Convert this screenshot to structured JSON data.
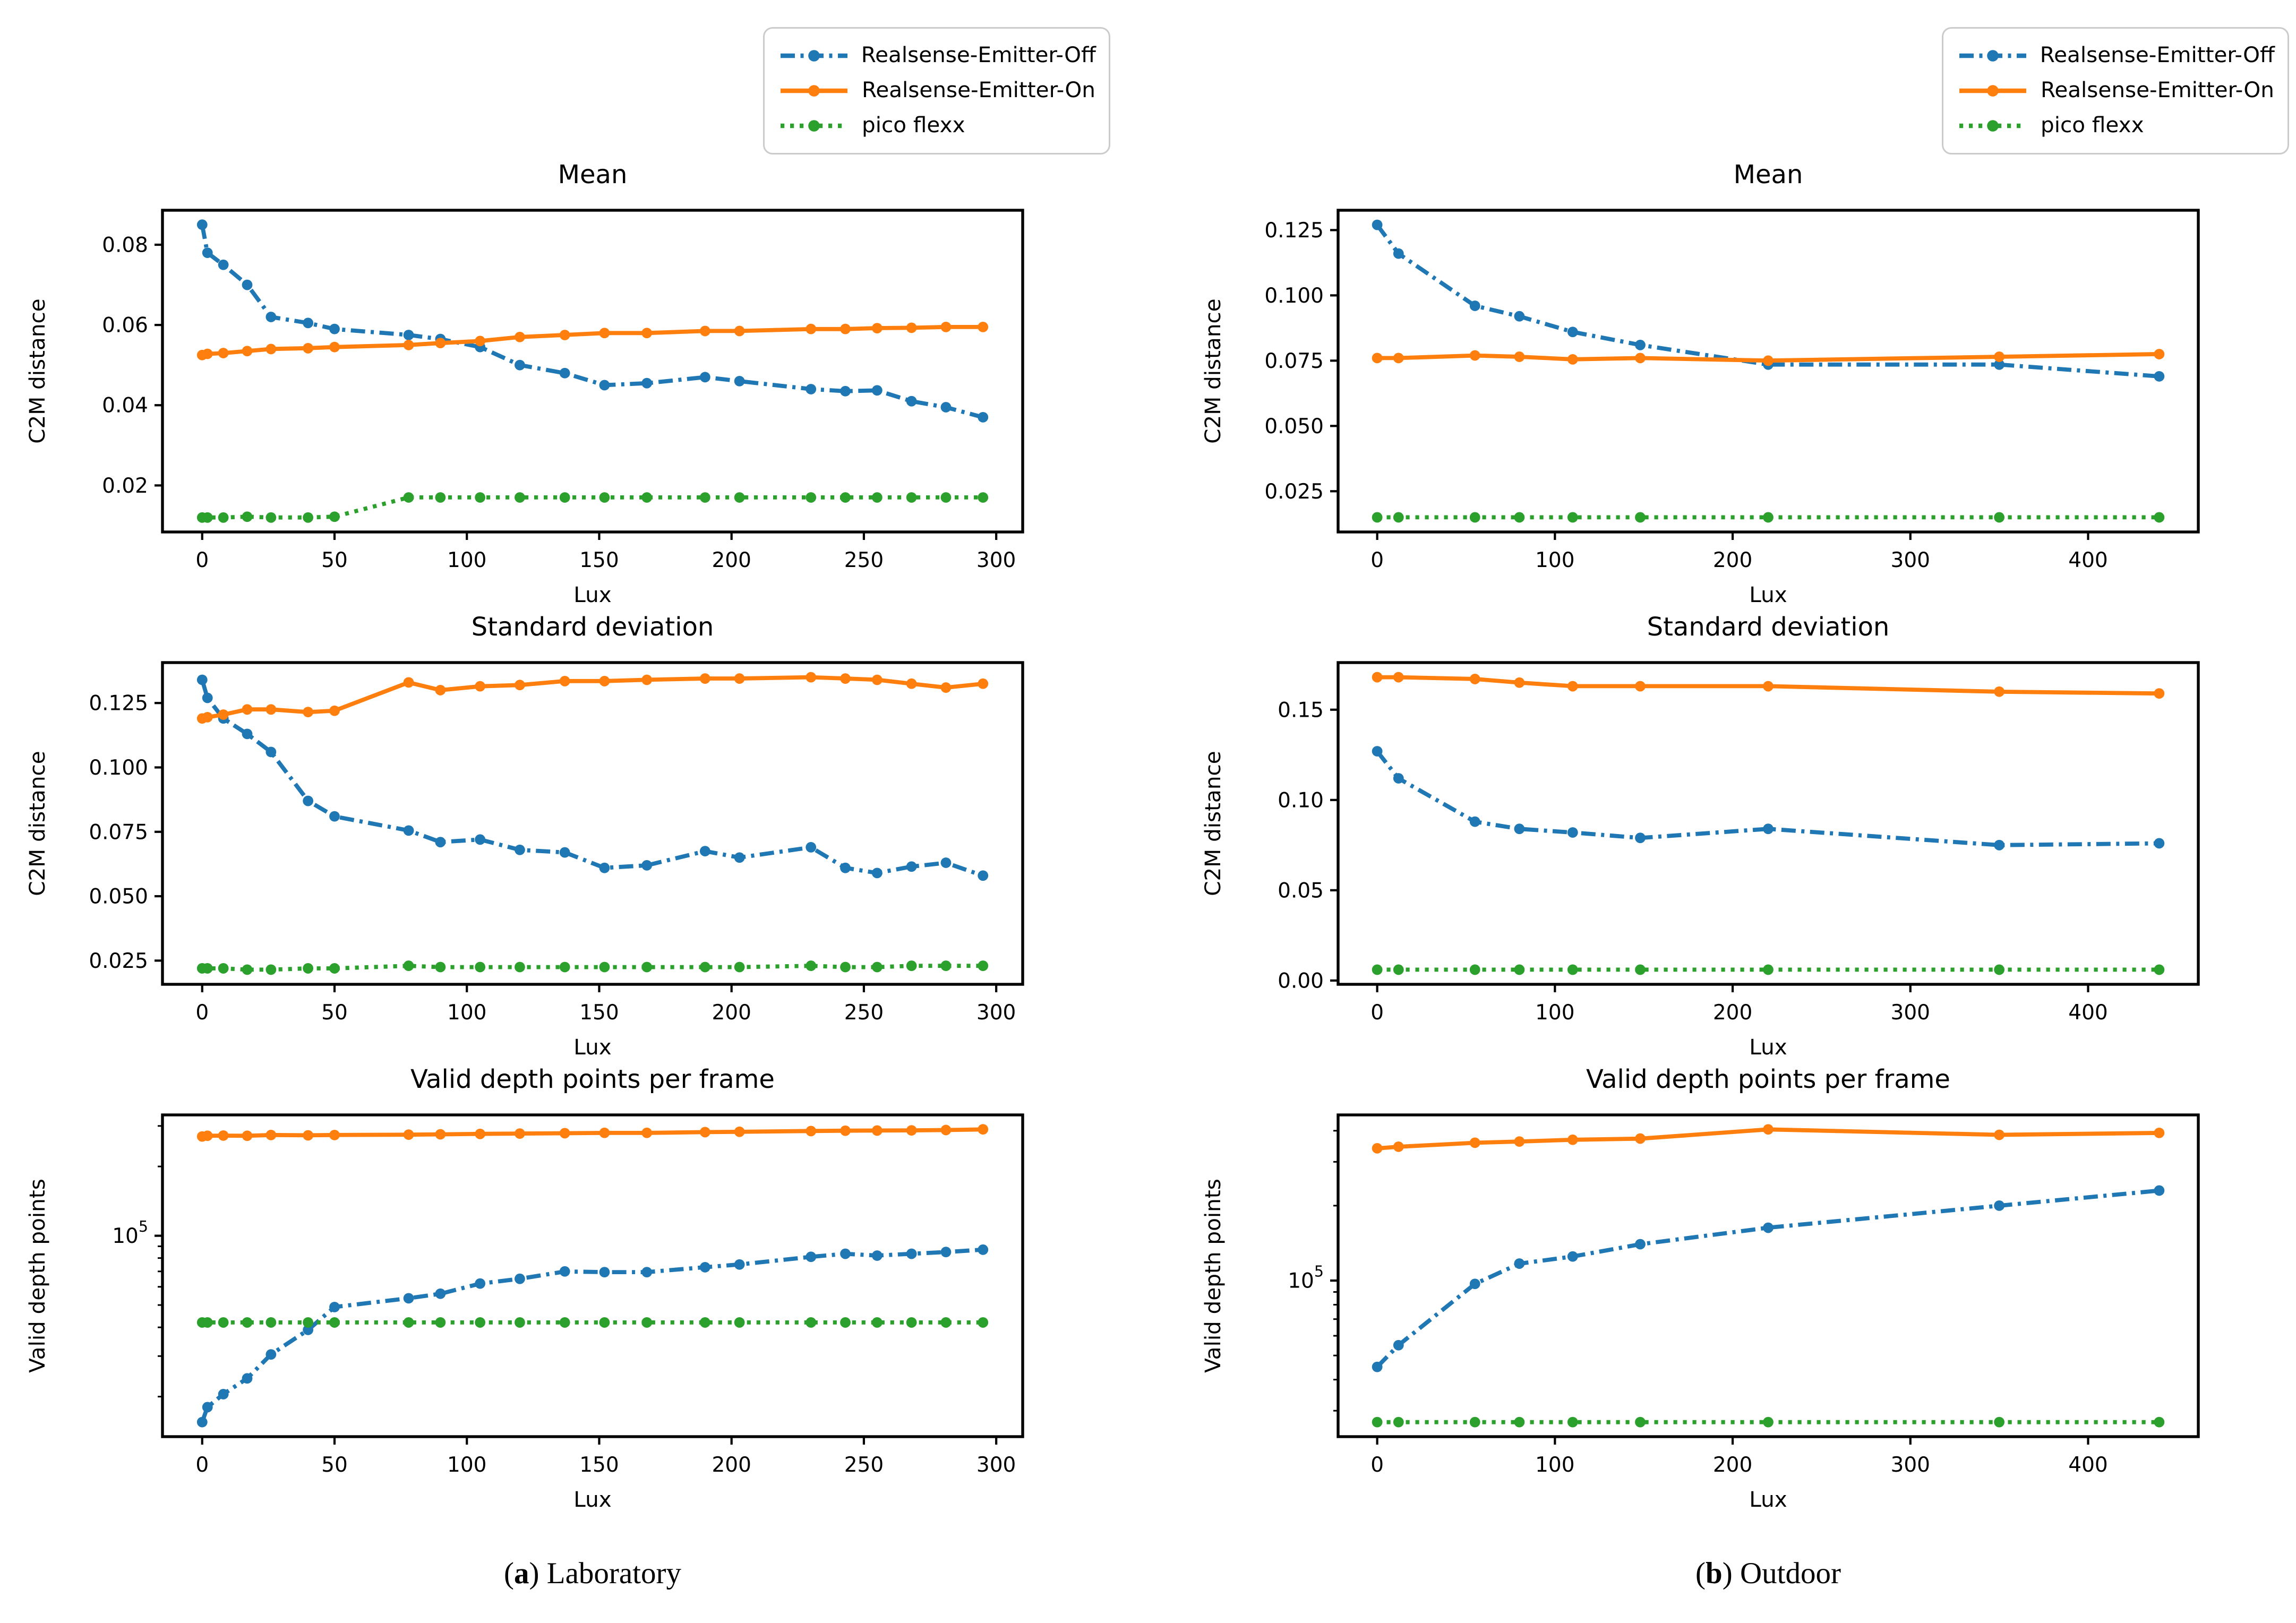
{
  "page": {
    "background": "#ffffff"
  },
  "colors": {
    "emitter_off": "#1f77b4",
    "emitter_on": "#ff7f0e",
    "pico_flexx": "#2ca02c",
    "axis": "#000000",
    "legend_border": "#cbcbcb"
  },
  "legend": {
    "position": "top-right-of-each-column",
    "items": [
      {
        "label": "Realsense-Emitter-Off",
        "series_key": "emitter_off",
        "style": "dashdot",
        "marker": "circle"
      },
      {
        "label": "Realsense-Emitter-On",
        "series_key": "emitter_on",
        "style": "solid",
        "marker": "circle"
      },
      {
        "label": "pico flexx",
        "series_key": "pico_flexx",
        "style": "dotted",
        "marker": "circle"
      }
    ]
  },
  "captions": {
    "a": {
      "open": "(",
      "label": "a",
      "close": ")",
      "text": " Laboratory"
    },
    "b": {
      "open": "(",
      "label": "b",
      "close": ")",
      "text": " Outdoor"
    }
  },
  "chart_data": [
    {
      "id": "laboratory-mean",
      "type": "line",
      "title": "Mean",
      "xlabel": "Lux",
      "ylabel": "C2M distance",
      "yscale": "linear",
      "grid": false,
      "xlim": [
        -15,
        310
      ],
      "ylim": [
        0.0084,
        0.0886
      ],
      "xticks": [
        0,
        50,
        100,
        150,
        200,
        250,
        300
      ],
      "yticks": [
        {
          "v": 0.02,
          "label": "0.02"
        },
        {
          "v": 0.04,
          "label": "0.04"
        },
        {
          "v": 0.06,
          "label": "0.06"
        },
        {
          "v": 0.08,
          "label": "0.08"
        }
      ],
      "x": [
        0,
        2,
        8,
        17,
        26,
        40,
        50,
        78,
        90,
        105,
        120,
        137,
        152,
        168,
        190,
        203,
        230,
        243,
        255,
        268,
        281,
        295
      ],
      "series": [
        {
          "name": "Realsense-Emitter-Off",
          "key": "emitter_off",
          "style": "dashdot",
          "values": [
            0.085,
            0.078,
            0.075,
            0.07,
            0.062,
            0.0605,
            0.059,
            0.0575,
            0.0565,
            0.0545,
            0.05,
            0.048,
            0.045,
            0.0455,
            0.047,
            0.046,
            0.044,
            0.0435,
            0.0437,
            0.041,
            0.0395,
            0.037
          ]
        },
        {
          "name": "Realsense-Emitter-On",
          "key": "emitter_on",
          "style": "solid",
          "values": [
            0.0525,
            0.0528,
            0.053,
            0.0535,
            0.054,
            0.0542,
            0.0545,
            0.055,
            0.0555,
            0.056,
            0.057,
            0.0575,
            0.058,
            0.058,
            0.0585,
            0.0585,
            0.059,
            0.059,
            0.0592,
            0.0593,
            0.0595,
            0.0595
          ]
        },
        {
          "name": "pico flexx",
          "key": "pico_flexx",
          "style": "dotted",
          "values": [
            0.012,
            0.012,
            0.012,
            0.0122,
            0.012,
            0.012,
            0.0122,
            0.017,
            0.017,
            0.017,
            0.017,
            0.017,
            0.017,
            0.017,
            0.017,
            0.017,
            0.017,
            0.017,
            0.017,
            0.017,
            0.017,
            0.017
          ]
        }
      ]
    },
    {
      "id": "outdoor-mean",
      "type": "line",
      "title": "Mean",
      "xlabel": "Lux",
      "ylabel": "C2M distance",
      "yscale": "linear",
      "grid": false,
      "xlim": [
        -22,
        462
      ],
      "ylim": [
        0.0094,
        0.1326
      ],
      "xticks": [
        0,
        100,
        200,
        300,
        400
      ],
      "yticks": [
        {
          "v": 0.025,
          "label": "0.025"
        },
        {
          "v": 0.05,
          "label": "0.050"
        },
        {
          "v": 0.075,
          "label": "0.075"
        },
        {
          "v": 0.1,
          "label": "0.100"
        },
        {
          "v": 0.125,
          "label": "0.125"
        }
      ],
      "x": [
        0,
        12,
        55,
        80,
        110,
        148,
        220,
        350,
        440
      ],
      "series": [
        {
          "name": "Realsense-Emitter-Off",
          "key": "emitter_off",
          "style": "dashdot",
          "values": [
            0.127,
            0.116,
            0.096,
            0.092,
            0.086,
            0.081,
            0.0735,
            0.0735,
            0.069
          ]
        },
        {
          "name": "Realsense-Emitter-On",
          "key": "emitter_on",
          "style": "solid",
          "values": [
            0.076,
            0.076,
            0.077,
            0.0765,
            0.0755,
            0.076,
            0.075,
            0.0765,
            0.0775
          ]
        },
        {
          "name": "pico flexx",
          "key": "pico_flexx",
          "style": "dotted",
          "values": [
            0.015,
            0.015,
            0.015,
            0.015,
            0.015,
            0.015,
            0.015,
            0.015,
            0.015
          ]
        }
      ]
    },
    {
      "id": "laboratory-standard-deviation",
      "type": "line",
      "title": "Standard deviation",
      "xlabel": "Lux",
      "ylabel": "C2M distance",
      "yscale": "linear",
      "grid": false,
      "xlim": [
        -15,
        310
      ],
      "ylim": [
        0.0158,
        0.1407
      ],
      "xticks": [
        0,
        50,
        100,
        150,
        200,
        250,
        300
      ],
      "yticks": [
        {
          "v": 0.025,
          "label": "0.025"
        },
        {
          "v": 0.05,
          "label": "0.050"
        },
        {
          "v": 0.075,
          "label": "0.075"
        },
        {
          "v": 0.1,
          "label": "0.100"
        },
        {
          "v": 0.125,
          "label": "0.125"
        }
      ],
      "x": [
        0,
        2,
        8,
        17,
        26,
        40,
        50,
        78,
        90,
        105,
        120,
        137,
        152,
        168,
        190,
        203,
        230,
        243,
        255,
        268,
        281,
        295
      ],
      "series": [
        {
          "name": "Realsense-Emitter-Off",
          "key": "emitter_off",
          "style": "dashdot",
          "values": [
            0.134,
            0.127,
            0.119,
            0.113,
            0.106,
            0.087,
            0.081,
            0.0755,
            0.071,
            0.072,
            0.068,
            0.067,
            0.061,
            0.062,
            0.0675,
            0.065,
            0.069,
            0.061,
            0.059,
            0.0615,
            0.063,
            0.058
          ]
        },
        {
          "name": "Realsense-Emitter-On",
          "key": "emitter_on",
          "style": "solid",
          "values": [
            0.119,
            0.1195,
            0.1205,
            0.1225,
            0.1225,
            0.1215,
            0.122,
            0.133,
            0.13,
            0.1315,
            0.132,
            0.1335,
            0.1335,
            0.134,
            0.1345,
            0.1345,
            0.135,
            0.1345,
            0.134,
            0.1325,
            0.131,
            0.1325
          ]
        },
        {
          "name": "pico flexx",
          "key": "pico_flexx",
          "style": "dotted",
          "values": [
            0.022,
            0.022,
            0.022,
            0.0215,
            0.0215,
            0.022,
            0.022,
            0.023,
            0.0225,
            0.0225,
            0.0225,
            0.0225,
            0.0225,
            0.0225,
            0.0225,
            0.0225,
            0.023,
            0.0225,
            0.0225,
            0.023,
            0.023,
            0.023
          ]
        }
      ]
    },
    {
      "id": "outdoor-standard-deviation",
      "type": "line",
      "title": "Standard deviation",
      "xlabel": "Lux",
      "ylabel": "C2M distance",
      "yscale": "linear",
      "grid": false,
      "xlim": [
        -22,
        462
      ],
      "ylim": [
        -0.0021,
        0.1761
      ],
      "xticks": [
        0,
        100,
        200,
        300,
        400
      ],
      "yticks": [
        {
          "v": 0.0,
          "label": "0.00"
        },
        {
          "v": 0.05,
          "label": "0.05"
        },
        {
          "v": 0.1,
          "label": "0.10"
        },
        {
          "v": 0.15,
          "label": "0.15"
        }
      ],
      "x": [
        0,
        12,
        55,
        80,
        110,
        148,
        220,
        350,
        440
      ],
      "series": [
        {
          "name": "Realsense-Emitter-Off",
          "key": "emitter_off",
          "style": "dashdot",
          "values": [
            0.127,
            0.112,
            0.088,
            0.084,
            0.082,
            0.079,
            0.084,
            0.075,
            0.076
          ]
        },
        {
          "name": "Realsense-Emitter-On",
          "key": "emitter_on",
          "style": "solid",
          "values": [
            0.168,
            0.168,
            0.167,
            0.165,
            0.163,
            0.163,
            0.163,
            0.16,
            0.159
          ]
        },
        {
          "name": "pico flexx",
          "key": "pico_flexx",
          "style": "dotted",
          "values": [
            0.006,
            0.006,
            0.006,
            0.006,
            0.006,
            0.006,
            0.006,
            0.006,
            0.006
          ]
        }
      ]
    },
    {
      "id": "laboratory-valid-depth-points",
      "type": "line",
      "title": "Valid depth points per frame",
      "xlabel": "Lux",
      "ylabel": "Valid depth points",
      "yscale": "log",
      "grid": false,
      "minor_ticks": true,
      "xlim": [
        -15,
        310
      ],
      "ylim": [
        13400,
        335000
      ],
      "xticks": [
        0,
        50,
        100,
        150,
        200,
        250,
        300
      ],
      "yticks": [
        {
          "v": 100000,
          "base": "10",
          "sup": "5"
        }
      ],
      "x": [
        0,
        2,
        8,
        17,
        26,
        40,
        50,
        78,
        90,
        105,
        120,
        137,
        152,
        168,
        190,
        203,
        230,
        243,
        255,
        268,
        281,
        295
      ],
      "series": [
        {
          "name": "Realsense-Emitter-Off",
          "key": "emitter_off",
          "style": "dashdot",
          "values": [
            15500,
            18000,
            20500,
            24000,
            30500,
            39000,
            49000,
            53500,
            56000,
            62000,
            65000,
            70000,
            69500,
            69500,
            73000,
            75000,
            81000,
            83500,
            82000,
            83500,
            85000,
            87000
          ]
        },
        {
          "name": "Realsense-Emitter-On",
          "key": "emitter_on",
          "style": "solid",
          "values": [
            270000,
            272000,
            272500,
            272000,
            274000,
            273000,
            274000,
            275000,
            276000,
            277000,
            278000,
            279000,
            280000,
            280000,
            282000,
            283000,
            285000,
            286000,
            286500,
            287000,
            288000,
            290000
          ]
        },
        {
          "name": "pico flexx",
          "key": "pico_flexx",
          "style": "dotted",
          "values": [
            42000,
            42000,
            42000,
            42000,
            42000,
            42000,
            42000,
            42000,
            42000,
            42000,
            42000,
            42000,
            42000,
            42000,
            42000,
            42000,
            42000,
            42000,
            42000,
            42000,
            42000,
            42000
          ]
        }
      ]
    },
    {
      "id": "outdoor-valid-depth-points",
      "type": "line",
      "title": "Valid depth points per frame",
      "xlabel": "Lux",
      "ylabel": "Valid depth points",
      "yscale": "log",
      "grid": false,
      "minor_ticks": true,
      "xlim": [
        -22,
        462
      ],
      "ylim": [
        23600,
        463000
      ],
      "xticks": [
        0,
        100,
        200,
        300,
        400
      ],
      "yticks": [
        {
          "v": 100000,
          "base": "10",
          "sup": "5"
        }
      ],
      "x": [
        0,
        12,
        55,
        80,
        110,
        148,
        220,
        350,
        440
      ],
      "series": [
        {
          "name": "Realsense-Emitter-Off",
          "key": "emitter_off",
          "style": "dashdot",
          "values": [
            45000,
            55000,
            97000,
            117000,
            125000,
            140000,
            163000,
            200000,
            230000
          ]
        },
        {
          "name": "Realsense-Emitter-On",
          "key": "emitter_on",
          "style": "solid",
          "values": [
            340000,
            345000,
            358000,
            362000,
            368000,
            372000,
            405000,
            385000,
            392000
          ]
        },
        {
          "name": "pico flexx",
          "key": "pico_flexx",
          "style": "dotted",
          "values": [
            27000,
            27000,
            27000,
            27000,
            27000,
            27000,
            27000,
            27000,
            27000
          ]
        }
      ]
    }
  ]
}
